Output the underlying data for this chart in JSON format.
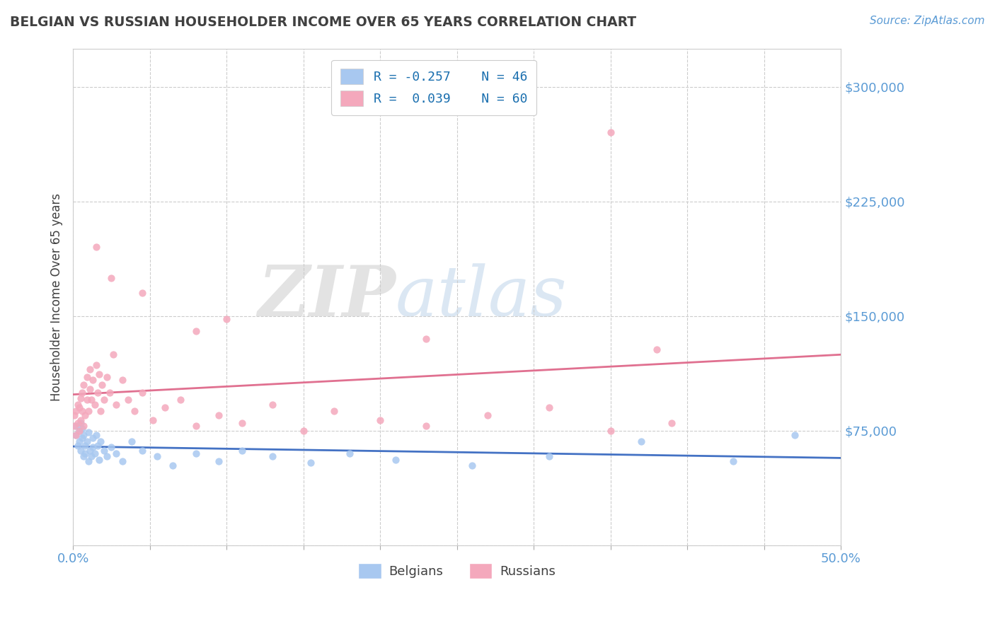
{
  "title": "BELGIAN VS RUSSIAN HOUSEHOLDER INCOME OVER 65 YEARS CORRELATION CHART",
  "source": "Source: ZipAtlas.com",
  "ylabel": "Householder Income Over 65 years",
  "xlim": [
    0.0,
    0.5
  ],
  "ylim": [
    0,
    325000
  ],
  "yticks": [
    0,
    75000,
    150000,
    225000,
    300000
  ],
  "ytick_labels": [
    "",
    "$75,000",
    "$150,000",
    "$225,000",
    "$300,000"
  ],
  "xticks": [
    0.0,
    0.05,
    0.1,
    0.15,
    0.2,
    0.25,
    0.3,
    0.35,
    0.4,
    0.45,
    0.5
  ],
  "belgian_color": "#a8c8f0",
  "russian_color": "#f4a8bc",
  "belgian_line_color": "#4472c4",
  "russian_line_color": "#e07090",
  "legend_line1": "R = -0.257    N = 46",
  "legend_line2": "R =  0.039    N = 60",
  "watermark_zip": "ZIP",
  "watermark_atlas": "atlas",
  "background_color": "#ffffff",
  "grid_color": "#cccccc",
  "tick_label_color": "#5b9bd5",
  "title_color": "#404040",
  "ylabel_color": "#404040",
  "belgians_x": [
    0.002,
    0.002,
    0.003,
    0.004,
    0.004,
    0.005,
    0.005,
    0.006,
    0.006,
    0.007,
    0.007,
    0.008,
    0.008,
    0.009,
    0.01,
    0.01,
    0.011,
    0.012,
    0.013,
    0.013,
    0.014,
    0.015,
    0.016,
    0.017,
    0.018,
    0.02,
    0.022,
    0.025,
    0.028,
    0.032,
    0.038,
    0.045,
    0.055,
    0.065,
    0.08,
    0.095,
    0.11,
    0.13,
    0.155,
    0.18,
    0.21,
    0.26,
    0.31,
    0.37,
    0.43,
    0.47
  ],
  "belgians_y": [
    72000,
    78000,
    65000,
    75000,
    68000,
    80000,
    62000,
    70000,
    76000,
    58000,
    72000,
    65000,
    60000,
    68000,
    55000,
    74000,
    62000,
    58000,
    70000,
    64000,
    60000,
    72000,
    65000,
    56000,
    68000,
    62000,
    58000,
    64000,
    60000,
    55000,
    68000,
    62000,
    58000,
    52000,
    60000,
    55000,
    62000,
    58000,
    54000,
    60000,
    56000,
    52000,
    58000,
    68000,
    55000,
    72000
  ],
  "russians_x": [
    0.001,
    0.001,
    0.002,
    0.002,
    0.003,
    0.003,
    0.004,
    0.004,
    0.005,
    0.005,
    0.006,
    0.006,
    0.007,
    0.007,
    0.008,
    0.009,
    0.009,
    0.01,
    0.011,
    0.011,
    0.012,
    0.013,
    0.014,
    0.015,
    0.016,
    0.017,
    0.018,
    0.019,
    0.02,
    0.022,
    0.024,
    0.026,
    0.028,
    0.032,
    0.036,
    0.04,
    0.045,
    0.052,
    0.06,
    0.07,
    0.08,
    0.095,
    0.11,
    0.13,
    0.15,
    0.17,
    0.2,
    0.23,
    0.27,
    0.31,
    0.35,
    0.39,
    0.23,
    0.08,
    0.015,
    0.025,
    0.045,
    0.1,
    0.38,
    0.35
  ],
  "russians_y": [
    78000,
    85000,
    72000,
    88000,
    80000,
    92000,
    75000,
    90000,
    82000,
    96000,
    88000,
    100000,
    78000,
    105000,
    85000,
    95000,
    110000,
    88000,
    102000,
    115000,
    95000,
    108000,
    92000,
    118000,
    100000,
    112000,
    88000,
    105000,
    95000,
    110000,
    100000,
    125000,
    92000,
    108000,
    95000,
    88000,
    100000,
    82000,
    90000,
    95000,
    78000,
    85000,
    80000,
    92000,
    75000,
    88000,
    82000,
    78000,
    85000,
    90000,
    75000,
    80000,
    135000,
    140000,
    195000,
    175000,
    165000,
    148000,
    128000,
    270000
  ],
  "legend_belgian_color": "#a8c8f0",
  "legend_russian_color": "#f4a8bc"
}
